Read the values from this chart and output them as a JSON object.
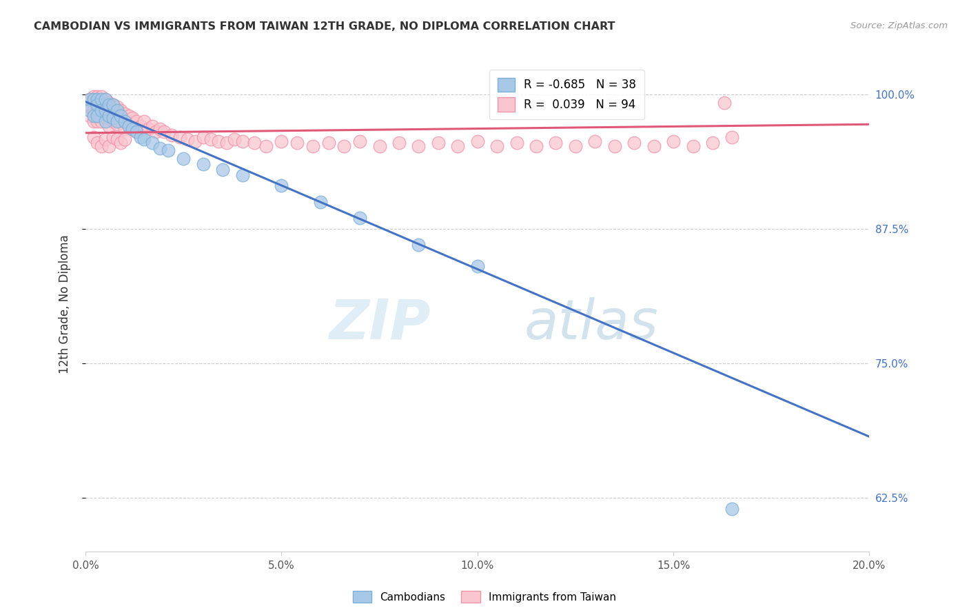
{
  "title": "CAMBODIAN VS IMMIGRANTS FROM TAIWAN 12TH GRADE, NO DIPLOMA CORRELATION CHART",
  "source": "Source: ZipAtlas.com",
  "ylabel": "12th Grade, No Diploma",
  "xmin": 0.0,
  "xmax": 0.2,
  "ymin": 0.575,
  "ymax": 1.035,
  "yticks": [
    0.625,
    0.75,
    0.875,
    1.0
  ],
  "ytick_labels": [
    "62.5%",
    "75.0%",
    "87.5%",
    "100.0%"
  ],
  "xticks": [
    0.0,
    0.05,
    0.1,
    0.15,
    0.2
  ],
  "xtick_labels": [
    "0.0%",
    "5.0%",
    "10.0%",
    "15.0%",
    "20.0%"
  ],
  "cambodian_color": "#a8c8e8",
  "cambodian_edge": "#7bafd4",
  "taiwan_color": "#f9c6d0",
  "taiwan_edge": "#f093a8",
  "cambodian_R": -0.685,
  "cambodian_N": 38,
  "taiwan_R": 0.039,
  "taiwan_N": 94,
  "line_blue": "#4472c4",
  "line_pink": "#e05878",
  "watermark_zip": "ZIP",
  "watermark_atlas": "atlas",
  "legend_label_blue": "Cambodians",
  "legend_label_pink": "Immigrants from Taiwan",
  "cambodian_x": [
    0.001,
    0.001,
    0.002,
    0.002,
    0.003,
    0.003,
    0.003,
    0.004,
    0.004,
    0.005,
    0.005,
    0.005,
    0.006,
    0.006,
    0.007,
    0.007,
    0.008,
    0.008,
    0.009,
    0.01,
    0.011,
    0.012,
    0.013,
    0.014,
    0.015,
    0.017,
    0.019,
    0.021,
    0.025,
    0.03,
    0.035,
    0.04,
    0.05,
    0.06,
    0.07,
    0.085,
    0.1,
    0.165
  ],
  "cambodian_y": [
    0.995,
    0.985,
    0.995,
    0.98,
    0.995,
    0.99,
    0.98,
    0.995,
    0.985,
    0.995,
    0.985,
    0.975,
    0.99,
    0.98,
    0.99,
    0.978,
    0.985,
    0.975,
    0.98,
    0.975,
    0.97,
    0.968,
    0.965,
    0.96,
    0.958,
    0.955,
    0.95,
    0.948,
    0.94,
    0.935,
    0.93,
    0.925,
    0.915,
    0.9,
    0.885,
    0.86,
    0.84,
    0.615
  ],
  "taiwan_x": [
    0.001,
    0.001,
    0.001,
    0.002,
    0.002,
    0.002,
    0.002,
    0.003,
    0.003,
    0.003,
    0.003,
    0.003,
    0.004,
    0.004,
    0.004,
    0.004,
    0.005,
    0.005,
    0.005,
    0.006,
    0.006,
    0.006,
    0.006,
    0.007,
    0.007,
    0.007,
    0.008,
    0.008,
    0.008,
    0.009,
    0.009,
    0.01,
    0.01,
    0.01,
    0.011,
    0.011,
    0.012,
    0.012,
    0.013,
    0.013,
    0.014,
    0.015,
    0.016,
    0.017,
    0.018,
    0.019,
    0.02,
    0.022,
    0.024,
    0.026,
    0.028,
    0.03,
    0.032,
    0.034,
    0.036,
    0.038,
    0.04,
    0.043,
    0.046,
    0.05,
    0.054,
    0.058,
    0.062,
    0.066,
    0.07,
    0.075,
    0.08,
    0.085,
    0.09,
    0.095,
    0.1,
    0.105,
    0.11,
    0.115,
    0.12,
    0.125,
    0.13,
    0.135,
    0.14,
    0.145,
    0.15,
    0.155,
    0.16,
    0.165,
    0.002,
    0.003,
    0.004,
    0.005,
    0.006,
    0.007,
    0.008,
    0.009,
    0.01,
    0.163
  ],
  "taiwan_y": [
    0.995,
    0.988,
    0.98,
    0.998,
    0.992,
    0.985,
    0.975,
    0.998,
    0.992,
    0.988,
    0.982,
    0.975,
    0.998,
    0.992,
    0.985,
    0.975,
    0.995,
    0.988,
    0.978,
    0.992,
    0.985,
    0.978,
    0.97,
    0.99,
    0.983,
    0.975,
    0.988,
    0.98,
    0.972,
    0.985,
    0.975,
    0.982,
    0.975,
    0.968,
    0.98,
    0.97,
    0.978,
    0.968,
    0.975,
    0.965,
    0.97,
    0.975,
    0.968,
    0.97,
    0.965,
    0.968,
    0.965,
    0.962,
    0.96,
    0.958,
    0.956,
    0.96,
    0.958,
    0.956,
    0.955,
    0.958,
    0.956,
    0.955,
    0.952,
    0.956,
    0.955,
    0.952,
    0.955,
    0.952,
    0.956,
    0.952,
    0.955,
    0.952,
    0.955,
    0.952,
    0.956,
    0.952,
    0.955,
    0.952,
    0.955,
    0.952,
    0.956,
    0.952,
    0.955,
    0.952,
    0.956,
    0.952,
    0.955,
    0.96,
    0.96,
    0.955,
    0.952,
    0.958,
    0.952,
    0.96,
    0.958,
    0.955,
    0.958,
    0.992
  ],
  "blue_line_x0": 0.0,
  "blue_line_y0": 0.993,
  "blue_line_x1": 0.2,
  "blue_line_y1": 0.682,
  "pink_line_x0": 0.0,
  "pink_line_y0": 0.964,
  "pink_line_x1": 0.2,
  "pink_line_y1": 0.972
}
